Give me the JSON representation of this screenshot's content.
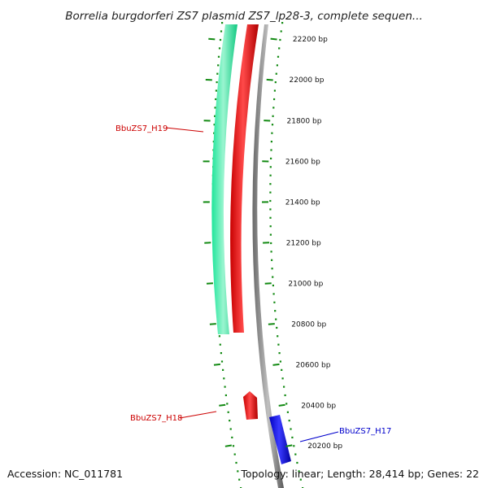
{
  "map": {
    "title": "Borrelia burgdorferi ZS7 plasmid ZS7_lp28-3, complete sequen...",
    "accession": "Accession: NC_011781",
    "topology": "Topology: linear; Length: 28,414 bp; Genes: 22"
  },
  "ruler": {
    "ticks": [
      {
        "bp": 22200,
        "label": "22200 bp"
      },
      {
        "bp": 22000,
        "label": "22000 bp"
      },
      {
        "bp": 21800,
        "label": "21800 bp"
      },
      {
        "bp": 21600,
        "label": "21600 bp"
      },
      {
        "bp": 21400,
        "label": "21400 bp"
      },
      {
        "bp": 21200,
        "label": "21200 bp"
      },
      {
        "bp": 21000,
        "label": "21000 bp"
      },
      {
        "bp": 20800,
        "label": "20800 bp"
      },
      {
        "bp": 20600,
        "label": "20600 bp"
      },
      {
        "bp": 20400,
        "label": "20400 bp"
      },
      {
        "bp": 20200,
        "label": "20200 bp"
      }
    ]
  },
  "features": [
    {
      "name": "BbuZS7_H19",
      "color": "#1ee59a",
      "strand": "outer"
    },
    {
      "name": "",
      "color": "#ee0000",
      "strand": "middle"
    },
    {
      "name": "BbuZS7_H18",
      "color": "#ee0000",
      "strand": "middle"
    },
    {
      "name": "BbuZS7_H17",
      "color": "#0000ee",
      "strand": "inner"
    }
  ],
  "colors": {
    "backbone": "#8a8a8a",
    "ticks": "#138a13",
    "label_red": "#cc0000",
    "label_blue": "#0000cc"
  }
}
